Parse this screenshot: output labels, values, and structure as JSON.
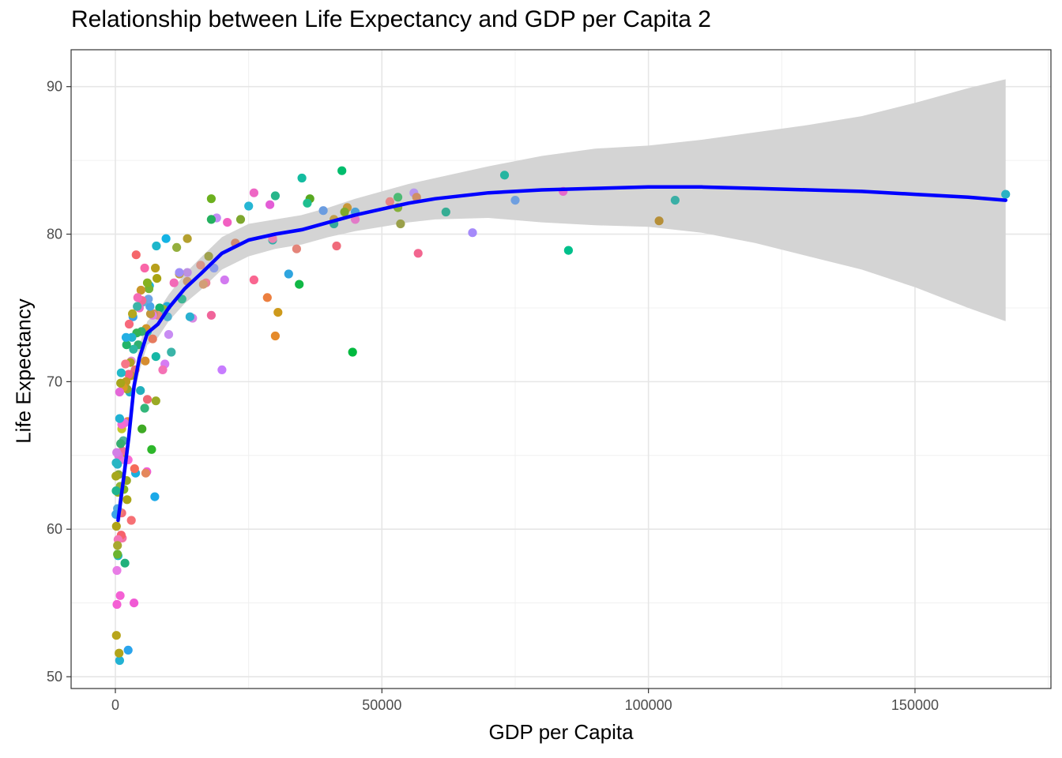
{
  "chart_data": {
    "type": "scatter",
    "title": "Relationship between Life Expectancy and GDP per Capita 2",
    "xlabel": "GDP per Capita",
    "ylabel": "Life Expectancy",
    "xlim": [
      -8300,
      175500
    ],
    "ylim": [
      49.2,
      92.5
    ],
    "x_ticks": [
      0,
      50000,
      100000,
      150000
    ],
    "x_tick_labels": [
      "0",
      "50000",
      "100000",
      "150000"
    ],
    "y_ticks": [
      50,
      60,
      70,
      80,
      90
    ],
    "y_tick_labels": [
      "50",
      "60",
      "70",
      "80",
      "90"
    ],
    "grid": true,
    "legend": "none",
    "trend_line": {
      "color": "#0000ff",
      "x": [
        500,
        1500,
        2500,
        3500,
        4500,
        6000,
        8000,
        10000,
        13000,
        16000,
        20000,
        25000,
        30000,
        35000,
        40000,
        45000,
        50000,
        55000,
        60000,
        70000,
        80000,
        90000,
        100000,
        110000,
        120000,
        130000,
        140000,
        150000,
        160000,
        167000
      ],
      "y": [
        60.6,
        63.3,
        66.2,
        69.7,
        71.6,
        73.3,
        73.9,
        75.0,
        76.3,
        77.3,
        78.7,
        79.6,
        80.0,
        80.3,
        80.8,
        81.3,
        81.7,
        82.1,
        82.4,
        82.8,
        83.0,
        83.1,
        83.2,
        83.2,
        83.1,
        83.0,
        82.9,
        82.7,
        82.5,
        82.3
      ]
    },
    "confidence_band": {
      "color": "#d4d4d4",
      "x": [
        500,
        1500,
        2500,
        3500,
        4500,
        6000,
        8000,
        10000,
        13000,
        16000,
        20000,
        25000,
        30000,
        35000,
        40000,
        45000,
        50000,
        55000,
        60000,
        70000,
        80000,
        90000,
        100000,
        110000,
        120000,
        130000,
        140000,
        150000,
        160000,
        167000
      ],
      "upper": [
        61.8,
        64.3,
        67.2,
        70.5,
        72.5,
        74.1,
        74.8,
        75.9,
        77.3,
        78.4,
        79.8,
        80.7,
        81.0,
        81.3,
        81.8,
        82.4,
        82.9,
        83.4,
        83.8,
        84.6,
        85.3,
        85.8,
        86.0,
        86.4,
        86.9,
        87.4,
        88.0,
        88.9,
        89.9,
        90.5
      ],
      "lower": [
        59.4,
        62.3,
        65.2,
        68.9,
        70.7,
        72.5,
        73.0,
        74.1,
        75.3,
        76.2,
        77.6,
        78.5,
        79.0,
        79.3,
        79.8,
        80.2,
        80.5,
        80.8,
        81.0,
        81.1,
        80.8,
        80.6,
        80.5,
        80.1,
        79.4,
        78.5,
        77.6,
        76.4,
        75.0,
        74.1
      ]
    },
    "points": [
      [
        73000,
        84.0,
        "#26b5a0"
      ],
      [
        105000,
        82.3,
        "#3aafa6"
      ],
      [
        167000,
        82.7,
        "#29b2c4"
      ],
      [
        75000,
        82.3,
        "#6f9fe0"
      ],
      [
        84000,
        82.9,
        "#e56bcb"
      ],
      [
        85000,
        78.9,
        "#00c08b"
      ],
      [
        102000,
        80.9,
        "#b68f38"
      ],
      [
        67000,
        80.1,
        "#a58afa"
      ],
      [
        62000,
        81.5,
        "#36ad94"
      ],
      [
        56000,
        82.8,
        "#b595f0"
      ],
      [
        56500,
        82.5,
        "#cf8f66"
      ],
      [
        56800,
        78.7,
        "#f2668f"
      ],
      [
        53000,
        82.5,
        "#4dba74"
      ],
      [
        53000,
        81.8,
        "#86b03b"
      ],
      [
        53500,
        80.7,
        "#9aa04a"
      ],
      [
        51500,
        82.2,
        "#e58686"
      ],
      [
        45000,
        81.5,
        "#4aa0d6"
      ],
      [
        45000,
        81.0,
        "#e27ac8"
      ],
      [
        44500,
        72.0,
        "#00b93f"
      ],
      [
        43500,
        81.8,
        "#c99839"
      ],
      [
        43000,
        81.5,
        "#7faa2c"
      ],
      [
        42500,
        84.3,
        "#00bd6d"
      ],
      [
        41000,
        81.0,
        "#c2a04a"
      ],
      [
        41000,
        80.7,
        "#35a89b"
      ],
      [
        41500,
        79.2,
        "#f06b7b"
      ],
      [
        39000,
        81.6,
        "#6b9ce0"
      ],
      [
        36500,
        82.4,
        "#58a820"
      ],
      [
        36000,
        82.1,
        "#1fbf90"
      ],
      [
        35000,
        83.8,
        "#14bca0"
      ],
      [
        34500,
        76.6,
        "#11b845"
      ],
      [
        34000,
        79.0,
        "#e48479"
      ],
      [
        32500,
        77.3,
        "#2ea5df"
      ],
      [
        30500,
        74.7,
        "#ce9a1b"
      ],
      [
        30000,
        73.1,
        "#e58a2b"
      ],
      [
        30000,
        82.6,
        "#27b68a"
      ],
      [
        29500,
        79.6,
        "#2cb0aa"
      ],
      [
        29500,
        79.7,
        "#ea83b0"
      ],
      [
        29000,
        82.0,
        "#e35dd6"
      ],
      [
        28500,
        75.7,
        "#ec7f3f"
      ],
      [
        26000,
        82.8,
        "#ee67c4"
      ],
      [
        26000,
        76.9,
        "#f96690"
      ],
      [
        25000,
        81.9,
        "#26b6d4"
      ],
      [
        23500,
        81.0,
        "#7ea72e"
      ],
      [
        22500,
        79.4,
        "#cf8a6f"
      ],
      [
        21000,
        80.8,
        "#f260c2"
      ],
      [
        20500,
        76.9,
        "#d27af0"
      ],
      [
        20000,
        70.8,
        "#c77cff"
      ],
      [
        19000,
        81.1,
        "#c48cf6"
      ],
      [
        18500,
        77.7,
        "#8e9ee8"
      ],
      [
        18000,
        74.5,
        "#f0649a"
      ],
      [
        18000,
        81.0,
        "#24b05f"
      ],
      [
        18000,
        82.4,
        "#6cb01e"
      ],
      [
        17500,
        78.5,
        "#a0a24f"
      ],
      [
        17000,
        76.7,
        "#ea849a"
      ],
      [
        16500,
        76.6,
        "#d29e76"
      ],
      [
        16000,
        77.9,
        "#d7968a"
      ],
      [
        14500,
        74.3,
        "#d889e2"
      ],
      [
        14000,
        74.4,
        "#2ab0d0"
      ],
      [
        13500,
        79.7,
        "#b4a02f"
      ],
      [
        13500,
        76.8,
        "#c69a6f"
      ],
      [
        13500,
        77.4,
        "#bd91e2"
      ],
      [
        12500,
        75.6,
        "#3fb595"
      ],
      [
        12000,
        77.3,
        "#c0a045"
      ],
      [
        12000,
        77.4,
        "#9f8ef7"
      ],
      [
        11500,
        79.1,
        "#94af3d"
      ],
      [
        11000,
        76.7,
        "#f26ab7"
      ],
      [
        10500,
        72.0,
        "#3ab4a8"
      ],
      [
        10000,
        73.2,
        "#c88cf3"
      ],
      [
        9800,
        74.4,
        "#50b0d0"
      ],
      [
        9700,
        75.1,
        "#23aad7"
      ],
      [
        9500,
        79.7,
        "#13b3e4"
      ],
      [
        9300,
        71.2,
        "#d67bf3"
      ],
      [
        9000,
        74.9,
        "#9db033"
      ],
      [
        8900,
        70.8,
        "#f472b5"
      ],
      [
        8500,
        74.8,
        "#52b7ae"
      ],
      [
        8300,
        75.0,
        "#15b46e"
      ],
      [
        8000,
        74.5,
        "#e38d7c"
      ],
      [
        7800,
        77.0,
        "#a9a313"
      ],
      [
        7700,
        79.2,
        "#1db6cb"
      ],
      [
        7600,
        71.7,
        "#16b7a6"
      ],
      [
        7600,
        68.7,
        "#9aaa24"
      ],
      [
        7500,
        77.7,
        "#b8a01c"
      ],
      [
        7400,
        62.2,
        "#1ba9e8"
      ],
      [
        7200,
        74.6,
        "#d1905f"
      ],
      [
        7000,
        74.5,
        "#df7ee6"
      ],
      [
        7000,
        72.9,
        "#e67a5e"
      ],
      [
        6800,
        65.4,
        "#2db72a"
      ],
      [
        6600,
        74.6,
        "#c1973c"
      ],
      [
        6500,
        75.1,
        "#4ba5e7"
      ],
      [
        6400,
        76.5,
        "#23b3d7"
      ],
      [
        6300,
        76.3,
        "#74b434"
      ],
      [
        6200,
        75.6,
        "#6fa3e5"
      ],
      [
        6000,
        73.4,
        "#23b6bd"
      ],
      [
        6000,
        76.7,
        "#85b220"
      ],
      [
        6000,
        68.8,
        "#ee6774"
      ],
      [
        5900,
        63.9,
        "#f15cd9"
      ],
      [
        5800,
        73.6,
        "#d2962d"
      ],
      [
        5700,
        63.8,
        "#e4875b"
      ],
      [
        5600,
        71.4,
        "#d68d30"
      ],
      [
        5500,
        68.2,
        "#33b67a"
      ],
      [
        5500,
        77.7,
        "#f966a8"
      ],
      [
        5200,
        75.4,
        "#64b0d0"
      ],
      [
        5000,
        66.8,
        "#3faa25"
      ],
      [
        5000,
        75.5,
        "#f36a97"
      ],
      [
        4900,
        73.4,
        "#35b070"
      ],
      [
        4800,
        76.2,
        "#c9962a"
      ],
      [
        4700,
        69.4,
        "#22b0bd"
      ],
      [
        4500,
        75.0,
        "#eb70c2"
      ],
      [
        4300,
        72.5,
        "#30b070"
      ],
      [
        4200,
        75.7,
        "#f56bb6"
      ],
      [
        4100,
        75.1,
        "#3cb3a7"
      ],
      [
        4000,
        73.3,
        "#34b355"
      ],
      [
        3900,
        78.6,
        "#f5676b"
      ],
      [
        3800,
        63.8,
        "#19b0e0"
      ],
      [
        3700,
        70.8,
        "#ea7472"
      ],
      [
        3600,
        64.1,
        "#f56c5a"
      ],
      [
        3500,
        55.0,
        "#f05ad4"
      ],
      [
        3400,
        72.2,
        "#2cb7a2"
      ],
      [
        3300,
        74.4,
        "#3aa0e8"
      ],
      [
        3200,
        74.6,
        "#b5a71f"
      ],
      [
        3100,
        73.0,
        "#21b3ce"
      ],
      [
        3000,
        71.4,
        "#e38ed5"
      ],
      [
        3000,
        60.6,
        "#f67074"
      ],
      [
        2900,
        70.4,
        "#b29a2b"
      ],
      [
        2800,
        71.3,
        "#b0a224"
      ],
      [
        2700,
        69.3,
        "#27b3c2"
      ],
      [
        2600,
        73.9,
        "#f7697c"
      ],
      [
        2500,
        70.5,
        "#f76383"
      ],
      [
        2400,
        64.7,
        "#f96bd4"
      ],
      [
        2400,
        51.8,
        "#2aa4ec"
      ],
      [
        2300,
        67.3,
        "#e98a46"
      ],
      [
        2200,
        69.5,
        "#9aa82b"
      ],
      [
        2200,
        62.0,
        "#aba617"
      ],
      [
        2100,
        72.5,
        "#23b469"
      ],
      [
        2100,
        63.3,
        "#97a824"
      ],
      [
        2000,
        70.0,
        "#bf9a21"
      ],
      [
        2000,
        73.0,
        "#23aee3"
      ],
      [
        1900,
        71.2,
        "#f77688"
      ],
      [
        1800,
        57.7,
        "#22b07c"
      ],
      [
        1800,
        64.7,
        "#f56fd1"
      ],
      [
        1700,
        67.2,
        "#e26fe5"
      ],
      [
        1600,
        62.7,
        "#83b322"
      ],
      [
        1500,
        69.6,
        "#d99a24"
      ],
      [
        1500,
        66.0,
        "#4fb09b"
      ],
      [
        1400,
        65.0,
        "#b8a52b"
      ],
      [
        1300,
        65.3,
        "#f26c93"
      ],
      [
        1300,
        59.4,
        "#f472a3"
      ],
      [
        1200,
        66.8,
        "#c5c72a"
      ],
      [
        1200,
        67.1,
        "#f46ad1"
      ],
      [
        1200,
        61.1,
        "#f16d74"
      ],
      [
        1100,
        70.6,
        "#22bac9"
      ],
      [
        1100,
        59.6,
        "#f7616b"
      ],
      [
        1000,
        69.9,
        "#a7a51a"
      ],
      [
        1000,
        65.8,
        "#37ae70"
      ],
      [
        1000,
        64.7,
        "#e87bdc"
      ],
      [
        900,
        55.5,
        "#f461d4"
      ],
      [
        900,
        62.9,
        "#8fb437"
      ],
      [
        800,
        51.1,
        "#22b2d3"
      ],
      [
        800,
        69.3,
        "#e468d8"
      ],
      [
        800,
        67.5,
        "#20b1d3"
      ],
      [
        700,
        51.6,
        "#b1a41a"
      ],
      [
        700,
        61.2,
        "#f07d74"
      ],
      [
        600,
        65.0,
        "#e570d8"
      ],
      [
        600,
        63.7,
        "#85a933"
      ],
      [
        500,
        62.5,
        "#95ab24"
      ],
      [
        500,
        58.2,
        "#1cb7c6"
      ],
      [
        500,
        59.3,
        "#f277b8"
      ],
      [
        400,
        61.4,
        "#53a7e0"
      ],
      [
        400,
        64.4,
        "#2ab1c7"
      ],
      [
        400,
        58.9,
        "#a8a82e"
      ],
      [
        400,
        58.3,
        "#6bb430"
      ],
      [
        300,
        57.2,
        "#e87de6"
      ],
      [
        300,
        54.9,
        "#f45fd4"
      ],
      [
        250,
        65.2,
        "#d37fe6"
      ],
      [
        200,
        60.2,
        "#b0a418"
      ],
      [
        200,
        52.8,
        "#b8a51b"
      ],
      [
        150,
        62.6,
        "#1fb58e"
      ],
      [
        150,
        64.5,
        "#27b6c4"
      ],
      [
        100,
        61.0,
        "#3aa5e8"
      ],
      [
        100,
        63.6,
        "#a7a81c"
      ]
    ]
  }
}
